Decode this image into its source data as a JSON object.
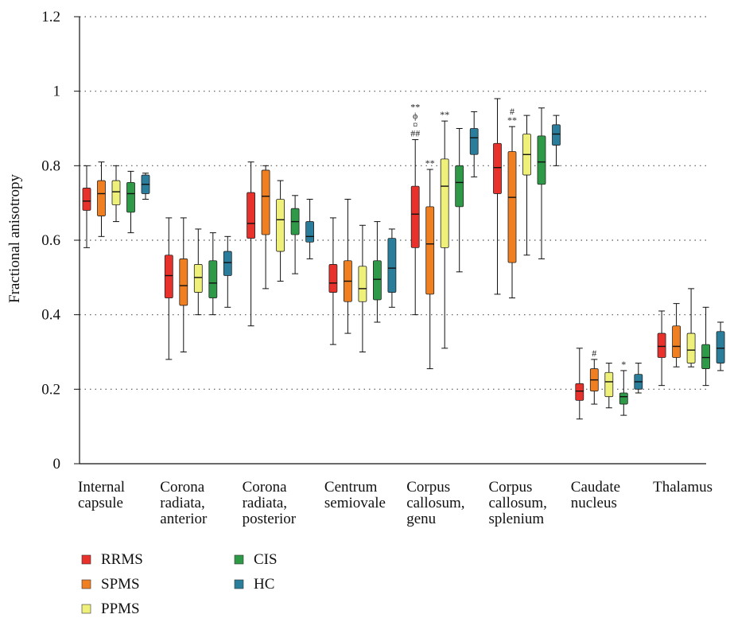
{
  "chart_data": {
    "type": "box",
    "ylabel": "Fractional anisotropy",
    "xlabel": "",
    "ylim": [
      0,
      1.2
    ],
    "yticks": [
      "0",
      "0.2",
      "0.4",
      "0.6",
      "0.8",
      "1",
      "1.2"
    ],
    "ytick_values": [
      0,
      0.2,
      0.4,
      0.6,
      0.8,
      1.0,
      1.2
    ],
    "grid": "horizontal dotted",
    "legend_position": "bottom-left",
    "categories": [
      [
        "Internal",
        "capsule"
      ],
      [
        "Corona",
        "radiata,",
        "anterior"
      ],
      [
        "Corona",
        "radiata,",
        "posterior"
      ],
      [
        "Centrum",
        "semiovale"
      ],
      [
        "Corpus",
        "callosum,",
        "genu"
      ],
      [
        "Corpus",
        "callosum,",
        "splenium"
      ],
      [
        "Caudate",
        "nucleus"
      ],
      [
        "Thalamus"
      ]
    ],
    "series": [
      {
        "name": "RRMS",
        "color": "#e8312b",
        "boxes": [
          {
            "min": 0.58,
            "q1": 0.68,
            "median": 0.705,
            "q3": 0.74,
            "max": 0.8
          },
          {
            "min": 0.28,
            "q1": 0.445,
            "median": 0.505,
            "q3": 0.56,
            "max": 0.66
          },
          {
            "min": 0.37,
            "q1": 0.605,
            "median": 0.645,
            "q3": 0.728,
            "max": 0.81
          },
          {
            "min": 0.32,
            "q1": 0.46,
            "median": 0.485,
            "q3": 0.535,
            "max": 0.66
          },
          {
            "min": 0.4,
            "q1": 0.58,
            "median": 0.67,
            "q3": 0.745,
            "max": 0.87
          },
          {
            "min": 0.455,
            "q1": 0.725,
            "median": 0.795,
            "q3": 0.86,
            "max": 0.98
          },
          {
            "min": 0.12,
            "q1": 0.17,
            "median": 0.195,
            "q3": 0.215,
            "max": 0.31
          },
          {
            "min": 0.21,
            "q1": 0.285,
            "median": 0.315,
            "q3": 0.35,
            "max": 0.41
          }
        ]
      },
      {
        "name": "SPMS",
        "color": "#f07f21",
        "boxes": [
          {
            "min": 0.61,
            "q1": 0.665,
            "median": 0.725,
            "q3": 0.76,
            "max": 0.81
          },
          {
            "min": 0.3,
            "q1": 0.425,
            "median": 0.478,
            "q3": 0.55,
            "max": 0.66
          },
          {
            "min": 0.47,
            "q1": 0.615,
            "median": 0.718,
            "q3": 0.788,
            "max": 0.8
          },
          {
            "min": 0.35,
            "q1": 0.435,
            "median": 0.49,
            "q3": 0.545,
            "max": 0.71
          },
          {
            "min": 0.255,
            "q1": 0.455,
            "median": 0.59,
            "q3": 0.69,
            "max": 0.79
          },
          {
            "min": 0.445,
            "q1": 0.54,
            "median": 0.715,
            "q3": 0.838,
            "max": 0.905
          },
          {
            "min": 0.16,
            "q1": 0.195,
            "median": 0.225,
            "q3": 0.255,
            "max": 0.28
          },
          {
            "min": 0.26,
            "q1": 0.285,
            "median": 0.315,
            "q3": 0.37,
            "max": 0.43
          }
        ]
      },
      {
        "name": "PPMS",
        "color": "#eef07a",
        "boxes": [
          {
            "min": 0.65,
            "q1": 0.695,
            "median": 0.73,
            "q3": 0.76,
            "max": 0.8
          },
          {
            "min": 0.4,
            "q1": 0.46,
            "median": 0.5,
            "q3": 0.535,
            "max": 0.63
          },
          {
            "min": 0.49,
            "q1": 0.57,
            "median": 0.655,
            "q3": 0.71,
            "max": 0.76
          },
          {
            "min": 0.3,
            "q1": 0.435,
            "median": 0.47,
            "q3": 0.53,
            "max": 0.64
          },
          {
            "min": 0.31,
            "q1": 0.58,
            "median": 0.745,
            "q3": 0.818,
            "max": 0.92
          },
          {
            "min": 0.56,
            "q1": 0.775,
            "median": 0.83,
            "q3": 0.885,
            "max": 0.935
          },
          {
            "min": 0.15,
            "q1": 0.18,
            "median": 0.22,
            "q3": 0.245,
            "max": 0.27
          },
          {
            "min": 0.26,
            "q1": 0.27,
            "median": 0.305,
            "q3": 0.35,
            "max": 0.47
          }
        ]
      },
      {
        "name": "CIS",
        "color": "#2e9a48",
        "boxes": [
          {
            "min": 0.62,
            "q1": 0.675,
            "median": 0.725,
            "q3": 0.755,
            "max": 0.785
          },
          {
            "min": 0.4,
            "q1": 0.445,
            "median": 0.485,
            "q3": 0.545,
            "max": 0.62
          },
          {
            "min": 0.51,
            "q1": 0.615,
            "median": 0.65,
            "q3": 0.685,
            "max": 0.72
          },
          {
            "min": 0.38,
            "q1": 0.44,
            "median": 0.495,
            "q3": 0.545,
            "max": 0.65
          },
          {
            "min": 0.515,
            "q1": 0.69,
            "median": 0.755,
            "q3": 0.8,
            "max": 0.9
          },
          {
            "min": 0.55,
            "q1": 0.75,
            "median": 0.81,
            "q3": 0.88,
            "max": 0.955
          },
          {
            "min": 0.13,
            "q1": 0.16,
            "median": 0.18,
            "q3": 0.19,
            "max": 0.25
          },
          {
            "min": 0.21,
            "q1": 0.255,
            "median": 0.285,
            "q3": 0.32,
            "max": 0.42
          }
        ]
      },
      {
        "name": "HC",
        "color": "#2a7e9c",
        "boxes": [
          {
            "min": 0.71,
            "q1": 0.725,
            "median": 0.75,
            "q3": 0.775,
            "max": 0.78
          },
          {
            "min": 0.42,
            "q1": 0.505,
            "median": 0.54,
            "q3": 0.57,
            "max": 0.61
          },
          {
            "min": 0.55,
            "q1": 0.595,
            "median": 0.61,
            "q3": 0.65,
            "max": 0.71
          },
          {
            "min": 0.42,
            "q1": 0.46,
            "median": 0.525,
            "q3": 0.605,
            "max": 0.63
          },
          {
            "min": 0.77,
            "q1": 0.83,
            "median": 0.875,
            "q3": 0.9,
            "max": 0.945
          },
          {
            "min": 0.8,
            "q1": 0.855,
            "median": 0.885,
            "q3": 0.91,
            "max": 0.935
          },
          {
            "min": 0.19,
            "q1": 0.2,
            "median": 0.22,
            "q3": 0.24,
            "max": 0.27
          },
          {
            "min": 0.25,
            "q1": 0.27,
            "median": 0.31,
            "q3": 0.355,
            "max": 0.38
          }
        ]
      }
    ],
    "annotations": [
      {
        "category": 4,
        "series": 0,
        "lines": [
          "**",
          "ϕ",
          "¤",
          "##"
        ]
      },
      {
        "category": 4,
        "series": 1,
        "lines": [
          "**"
        ]
      },
      {
        "category": 4,
        "series": 2,
        "lines": [
          "**"
        ]
      },
      {
        "category": 5,
        "series": 1,
        "lines": [
          "#",
          "**"
        ]
      },
      {
        "category": 6,
        "series": 1,
        "lines": [
          "#"
        ]
      },
      {
        "category": 6,
        "series": 3,
        "lines": [
          "*"
        ]
      }
    ]
  },
  "legend": {
    "items": [
      {
        "name": "RRMS",
        "color": "#e8312b"
      },
      {
        "name": "SPMS",
        "color": "#f07f21"
      },
      {
        "name": "PPMS",
        "color": "#eef07a"
      },
      {
        "name": "CIS",
        "color": "#2e9a48"
      },
      {
        "name": "HC",
        "color": "#2a7e9c"
      }
    ]
  }
}
